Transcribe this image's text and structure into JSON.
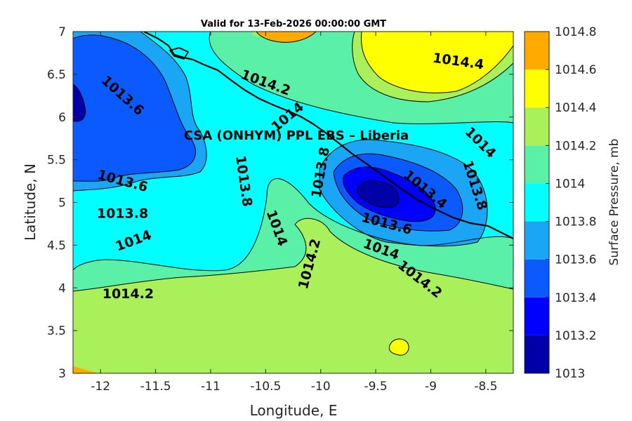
{
  "chart_data": {
    "type": "contour-map",
    "title": "Valid for 13-Feb-2026 00:00:00 GMT",
    "xlabel": "Longitude, E",
    "ylabel": "Latitude, N",
    "xlim": [
      -12.25,
      -8.25
    ],
    "ylim": [
      3,
      7
    ],
    "xticks": [
      "-12",
      "-11.5",
      "-11",
      "-10.5",
      "-10",
      "-9.5",
      "-9",
      "-8.5"
    ],
    "xtick_values": [
      -12,
      -11.5,
      -11,
      -10.5,
      -10,
      -9.5,
      -9,
      -8.5
    ],
    "yticks": [
      "3",
      "3.5",
      "4",
      "4.5",
      "5",
      "5.5",
      "6",
      "6.5",
      "7"
    ],
    "ytick_values": [
      3,
      3.5,
      4,
      4.5,
      5,
      5.5,
      6,
      6.5,
      7
    ],
    "region_label": "CSA (ONHYM) PPL EBS  – Liberia",
    "colorbar": {
      "label": "Surface Pressure, mb",
      "levels": [
        1013,
        1013.2,
        1013.4,
        1013.6,
        1013.8,
        1014,
        1014.2,
        1014.4,
        1014.6,
        1014.8
      ],
      "tick_labels": [
        "1013",
        "1013.2",
        "1013.4",
        "1013.6",
        "1013.8",
        "1014",
        "1014.2",
        "1014.4",
        "1014.6",
        "1014.8"
      ],
      "colors": [
        "#0000a8",
        "#0000ff",
        "#0a5aff",
        "#1aa6f5",
        "#00ffff",
        "#5af0a8",
        "#aaf05a",
        "#ffff00",
        "#ffaa00",
        "#ff5500"
      ]
    },
    "contour_labels": [
      {
        "text": "1014.4",
        "lon": -8.75,
        "lat": 6.65,
        "rotation": 8
      },
      {
        "text": "1014.2",
        "lon": -10.5,
        "lat": 6.4,
        "rotation": 20
      },
      {
        "text": "1013.6",
        "lon": -11.8,
        "lat": 6.25,
        "rotation": 42
      },
      {
        "text": "1014",
        "lon": -10.3,
        "lat": 6.0,
        "rotation": -40
      },
      {
        "text": "1014",
        "lon": -8.55,
        "lat": 5.7,
        "rotation": 45
      },
      {
        "text": "1013.8",
        "lon": -10.0,
        "lat": 5.35,
        "rotation": -80
      },
      {
        "text": "1013.8",
        "lon": -10.7,
        "lat": 5.25,
        "rotation": 82
      },
      {
        "text": "1013.6",
        "lon": -11.8,
        "lat": 5.25,
        "rotation": 15
      },
      {
        "text": "1013.4",
        "lon": -9.05,
        "lat": 5.15,
        "rotation": 40
      },
      {
        "text": "1013.8",
        "lon": -8.6,
        "lat": 5.2,
        "rotation": 72
      },
      {
        "text": "1013.8",
        "lon": -11.8,
        "lat": 4.87,
        "rotation": 0
      },
      {
        "text": "1013.6",
        "lon": -9.4,
        "lat": 4.75,
        "rotation": 15
      },
      {
        "text": "1014",
        "lon": -10.4,
        "lat": 4.7,
        "rotation": 70
      },
      {
        "text": "1014",
        "lon": -11.7,
        "lat": 4.55,
        "rotation": -20
      },
      {
        "text": "1014",
        "lon": -9.45,
        "lat": 4.45,
        "rotation": 20
      },
      {
        "text": "1014.2",
        "lon": -10.1,
        "lat": 4.28,
        "rotation": -75
      },
      {
        "text": "1014.2",
        "lon": -9.1,
        "lat": 4.1,
        "rotation": 38
      },
      {
        "text": "1014.2",
        "lon": -11.75,
        "lat": 3.93,
        "rotation": 0
      }
    ]
  }
}
